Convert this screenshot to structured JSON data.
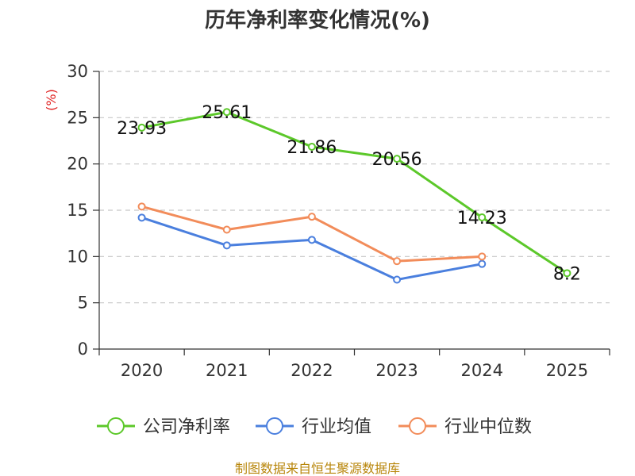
{
  "chart_data": {
    "type": "line",
    "title": "历年净利率变化情况(%)",
    "ylabel": "(%)",
    "xlabel": "",
    "categories": [
      "2020",
      "2021",
      "2022",
      "2023",
      "2024",
      "2025"
    ],
    "ylim": [
      0,
      30
    ],
    "yticks": [
      0,
      5,
      10,
      15,
      20,
      25,
      30
    ],
    "grid": true,
    "legend_position": "bottom",
    "series": [
      {
        "name": "公司净利率",
        "color": "#5cc82a",
        "values": [
          23.93,
          25.61,
          21.86,
          20.56,
          14.23,
          8.2
        ],
        "labels": [
          "23.93",
          "25.61",
          "21.86",
          "20.56",
          "14.23",
          "8.2"
        ]
      },
      {
        "name": "行业均值",
        "color": "#4a7fde",
        "values": [
          14.2,
          11.2,
          11.8,
          7.5,
          9.2,
          null
        ]
      },
      {
        "name": "行业中位数",
        "color": "#f28c5a",
        "values": [
          15.4,
          12.9,
          14.3,
          9.5,
          10.0,
          null
        ]
      }
    ]
  },
  "footer": {
    "source": "制图数据来自恒生聚源数据库"
  }
}
